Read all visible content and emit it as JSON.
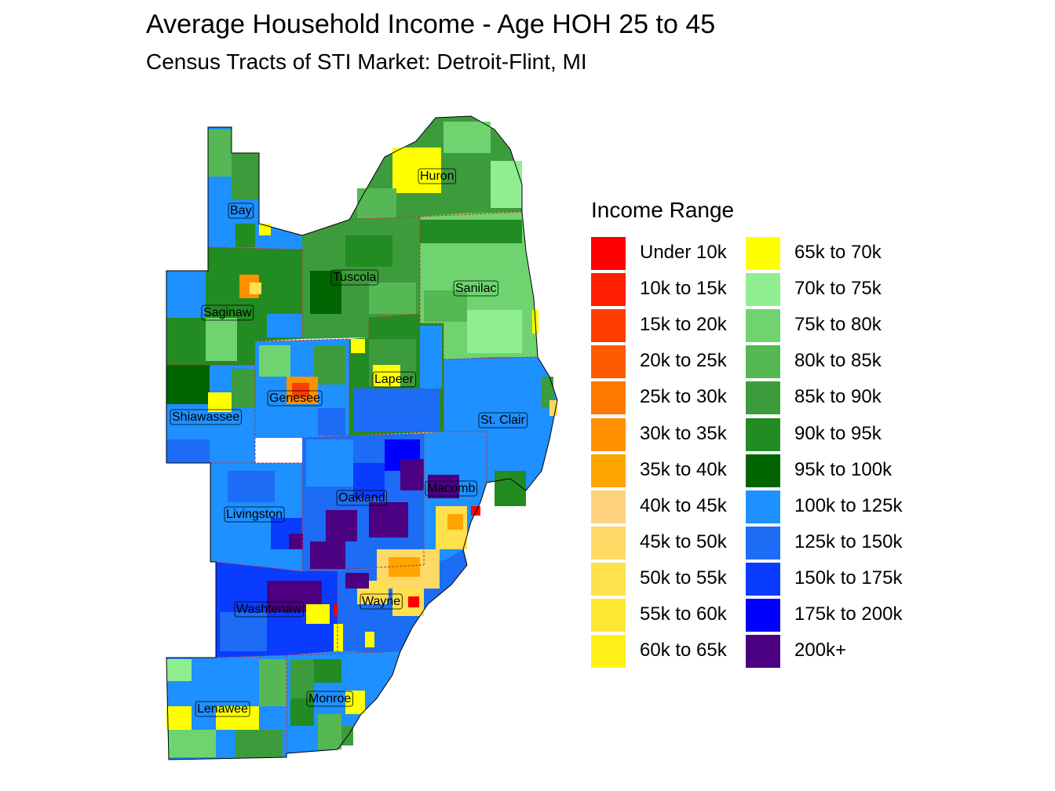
{
  "title": "Average Household Income - Age HOH 25 to 45",
  "subtitle": "Census Tracts of STI Market: Detroit-Flint, MI",
  "legend": {
    "title": "Income Range",
    "items": [
      {
        "label": "Under 10k",
        "color": "#ff0000"
      },
      {
        "label": "10k to 15k",
        "color": "#ff1e00"
      },
      {
        "label": "15k to 20k",
        "color": "#ff3c00"
      },
      {
        "label": "20k to 25k",
        "color": "#ff5a00"
      },
      {
        "label": "25k to 30k",
        "color": "#ff7800"
      },
      {
        "label": "30k to 35k",
        "color": "#ff9000"
      },
      {
        "label": "35k to 40k",
        "color": "#ffa500"
      },
      {
        "label": "40k to 45k",
        "color": "#ffd27f"
      },
      {
        "label": "45k to 50k",
        "color": "#ffd966"
      },
      {
        "label": "50k to 55k",
        "color": "#ffe04d"
      },
      {
        "label": "55k to 60k",
        "color": "#ffe733"
      },
      {
        "label": "60k to 65k",
        "color": "#fff01a"
      },
      {
        "label": "65k to 70k",
        "color": "#ffff00"
      },
      {
        "label": "70k to 75k",
        "color": "#90ee90"
      },
      {
        "label": "75k to 80k",
        "color": "#6fd46f"
      },
      {
        "label": "80k to 85k",
        "color": "#55b855"
      },
      {
        "label": "85k to 90k",
        "color": "#3c9c3c"
      },
      {
        "label": "90k to 95k",
        "color": "#228b22"
      },
      {
        "label": "95k to 100k",
        "color": "#006400"
      },
      {
        "label": "100k to 125k",
        "color": "#1e90ff"
      },
      {
        "label": "125k to 150k",
        "color": "#1c6cf5"
      },
      {
        "label": "150k to 175k",
        "color": "#0a3cff"
      },
      {
        "label": "175k to 200k",
        "color": "#0000ff"
      },
      {
        "label": "200k+",
        "color": "#4b0082"
      }
    ]
  },
  "counties": [
    {
      "name": "Huron"
    },
    {
      "name": "Bay"
    },
    {
      "name": "Tuscola"
    },
    {
      "name": "Sanilac"
    },
    {
      "name": "Saginaw"
    },
    {
      "name": "Lapeer"
    },
    {
      "name": "Genesee"
    },
    {
      "name": "Shiawassee"
    },
    {
      "name": "St. Clair"
    },
    {
      "name": "Macomb"
    },
    {
      "name": "Oakland"
    },
    {
      "name": "Livingston"
    },
    {
      "name": "Washtenaw"
    },
    {
      "name": "Wayne"
    },
    {
      "name": "Lenawee"
    },
    {
      "name": "Monroe"
    }
  ]
}
